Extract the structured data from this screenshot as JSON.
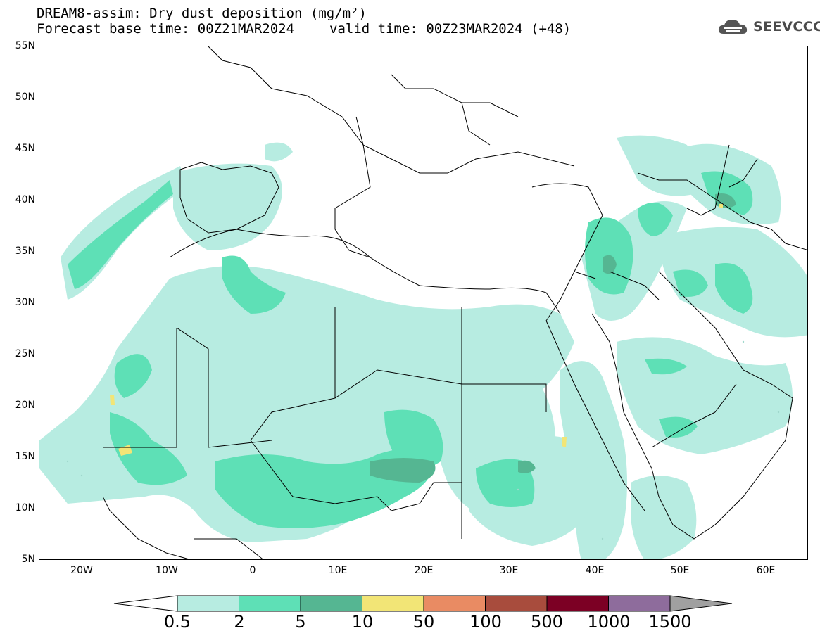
{
  "title": {
    "line1": "DREAM8-assim: Dry dust deposition (mg/m²)",
    "base_time": "Forecast base time: 00Z21MAR2024",
    "valid_time": "valid time: 00Z23MAR2024 (+48)"
  },
  "logo": {
    "text": "SEEVCCC",
    "icon": "cloud-icon"
  },
  "axes": {
    "lat_labels": [
      "55N",
      "50N",
      "45N",
      "40N",
      "35N",
      "30N",
      "25N",
      "20N",
      "15N",
      "10N",
      "5N"
    ],
    "lon_labels": [
      "20W",
      "10W",
      "0",
      "10E",
      "20E",
      "30E",
      "40E",
      "50E",
      "60E"
    ],
    "lat_range": [
      5,
      55
    ],
    "lon_range": [
      -25,
      65
    ]
  },
  "legend": {
    "labels": [
      "0.5",
      "2",
      "5",
      "10",
      "50",
      "100",
      "500",
      "1000",
      "1500"
    ],
    "colors": [
      "#ffffff",
      "#b7ece1",
      "#5ee0b6",
      "#55b692",
      "#f2e576",
      "#e98b63",
      "#a84c3d",
      "#7c0024",
      "#8e6c9c",
      "#a0a0a0"
    ]
  }
}
